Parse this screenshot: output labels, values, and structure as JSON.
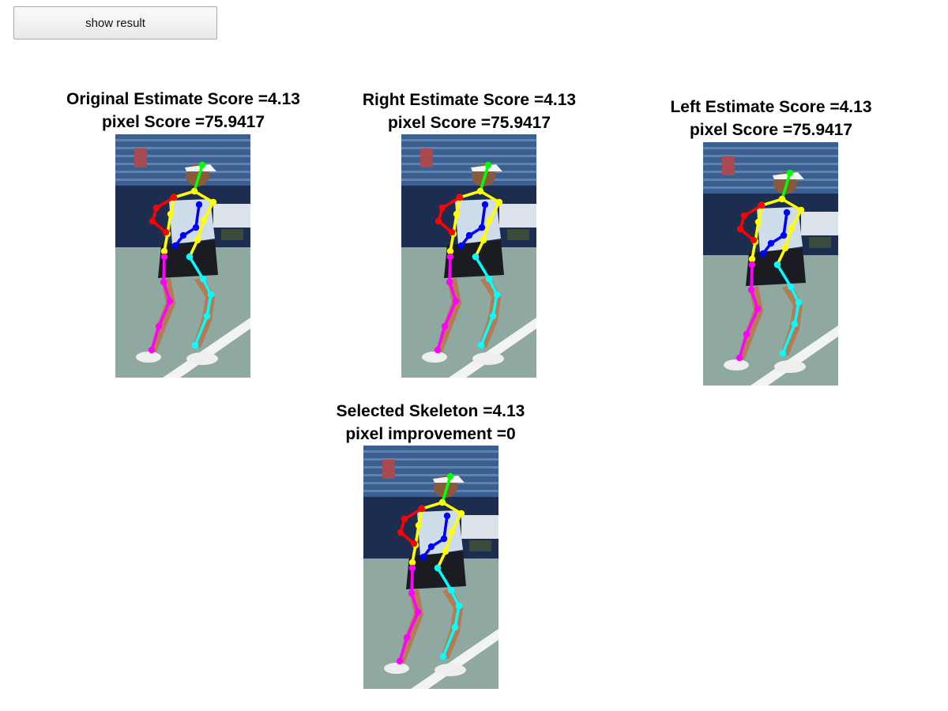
{
  "toolbar": {
    "show_result_label": "show result"
  },
  "panels": [
    {
      "line1": "Original Estimate Score =4.13",
      "line2": "pixel Score =75.9417"
    },
    {
      "line1": "Right Estimate Score =4.13",
      "line2": "pixel Score =75.9417"
    },
    {
      "line1": "Left Estimate Score =4.13",
      "line2": "pixel Score =75.9417"
    },
    {
      "line1": "Selected Skeleton =4.13",
      "line2": "pixel improvement =0"
    }
  ],
  "colors": {
    "head": "#00ff00",
    "torso": "#ffff00",
    "right_arm": "#ff0000",
    "left_arm": "#0000ff",
    "right_leg": "#ff00ff",
    "left_leg": "#00ffff"
  }
}
